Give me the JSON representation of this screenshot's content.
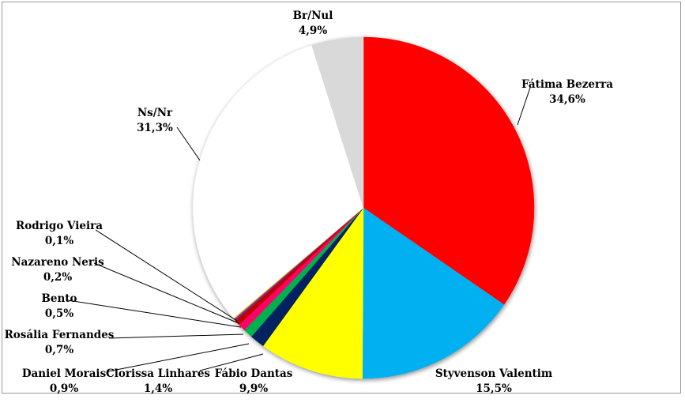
{
  "chart_data": {
    "type": "pie",
    "title": "",
    "legend": "none",
    "slices": [
      {
        "label": "Fátima Bezerra",
        "value": 34.6,
        "display": "34,6%",
        "color": "#ff0000"
      },
      {
        "label": "Styvenson Valentim",
        "value": 15.5,
        "display": "15,5%",
        "color": "#00b0f0"
      },
      {
        "label": "Fábio Dantas",
        "value": 9.9,
        "display": "9,9%",
        "color": "#ffff00"
      },
      {
        "label": "Clorissa Linhares",
        "value": 1.4,
        "display": "1,4%",
        "color": "#002060"
      },
      {
        "label": "Daniel Morais",
        "value": 0.9,
        "display": "0,9%",
        "color": "#00b050"
      },
      {
        "label": "Rosália Fernandes",
        "value": 0.7,
        "display": "0,7%",
        "color": "#ff0066"
      },
      {
        "label": "Bento",
        "value": 0.5,
        "display": "0,5%",
        "color": "#c00000"
      },
      {
        "label": "Nazareno Neris",
        "value": 0.2,
        "display": "0,2%",
        "color": "#7030a0"
      },
      {
        "label": "Rodrigo Vieira",
        "value": 0.1,
        "display": "0,1%",
        "color": "#ffc000"
      },
      {
        "label": "Ns/Nr",
        "value": 31.3,
        "display": "31,3%",
        "color": "#ffffff"
      },
      {
        "label": "Br/Nul",
        "value": 4.9,
        "display": "4,9%",
        "color": "#d9d9d9"
      }
    ]
  }
}
